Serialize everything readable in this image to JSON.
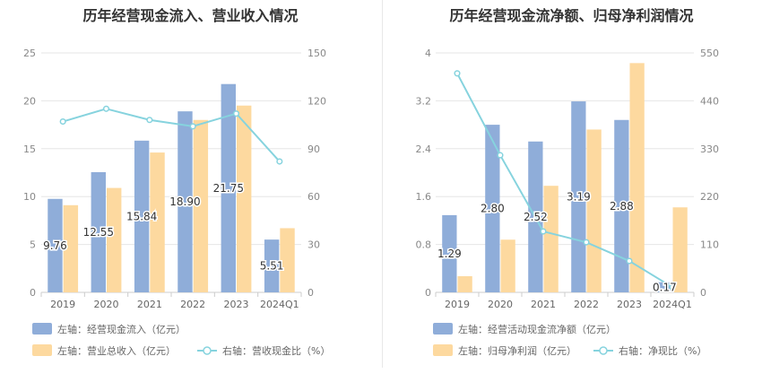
{
  "chart_data": [
    {
      "type": "bar",
      "title": "历年经营现金流入、营业收入情况",
      "categories": [
        "2019",
        "2020",
        "2021",
        "2022",
        "2023",
        "2024Q1"
      ],
      "left_axis": {
        "ylim": [
          0,
          25
        ],
        "ticks": [
          "0",
          "5",
          "10",
          "15",
          "20",
          "25"
        ]
      },
      "right_axis": {
        "ylim": [
          0,
          150
        ],
        "ticks": [
          "0",
          "30",
          "60",
          "90",
          "120",
          "150"
        ]
      },
      "series": [
        {
          "name": "左轴：经营现金流入（亿元）",
          "type": "bar",
          "axis": "left",
          "color": "#8fadd9",
          "values": [
            9.76,
            12.55,
            15.84,
            18.9,
            21.75,
            5.51
          ],
          "labels": [
            "9.76",
            "12.55",
            "15.84",
            "18.90",
            "21.75",
            "5.51"
          ]
        },
        {
          "name": "左轴：营业总收入（亿元）",
          "type": "bar",
          "axis": "left",
          "color": "#fdd99f",
          "values": [
            9.1,
            10.9,
            14.6,
            18.0,
            19.5,
            6.7
          ]
        },
        {
          "name": "右轴：营收现金比（%）",
          "type": "line",
          "axis": "right",
          "color": "#86d3de",
          "values": [
            107,
            115,
            108,
            104,
            112,
            82
          ]
        }
      ],
      "legend_position": "bottom"
    },
    {
      "type": "bar",
      "title": "历年经营现金流净额、归母净利润情况",
      "categories": [
        "2019",
        "2020",
        "2021",
        "2022",
        "2023",
        "2024Q1"
      ],
      "left_axis": {
        "ylim": [
          0,
          4
        ],
        "ticks": [
          "0",
          "0.8",
          "1.6",
          "2.4",
          "3.2",
          "4"
        ]
      },
      "right_axis": {
        "ylim": [
          0,
          550
        ],
        "ticks": [
          "0",
          "110",
          "220",
          "330",
          "440",
          "550"
        ]
      },
      "series": [
        {
          "name": "左轴：经营活动现金流净额（亿元）",
          "type": "bar",
          "axis": "left",
          "color": "#8fadd9",
          "values": [
            1.29,
            2.8,
            2.52,
            3.19,
            2.88,
            0.17
          ],
          "labels": [
            "1.29",
            "2.80",
            "2.52",
            "3.19",
            "2.88",
            "0.17"
          ]
        },
        {
          "name": "左轴：归母净利润（亿元）",
          "type": "bar",
          "axis": "left",
          "color": "#fdd99f",
          "values": [
            0.27,
            0.88,
            1.78,
            2.72,
            3.83,
            1.42
          ]
        },
        {
          "name": "右轴：净现比（%）",
          "type": "line",
          "axis": "right",
          "color": "#86d3de",
          "values": [
            503,
            315,
            140,
            115,
            72,
            12
          ]
        }
      ],
      "legend_position": "bottom"
    }
  ]
}
